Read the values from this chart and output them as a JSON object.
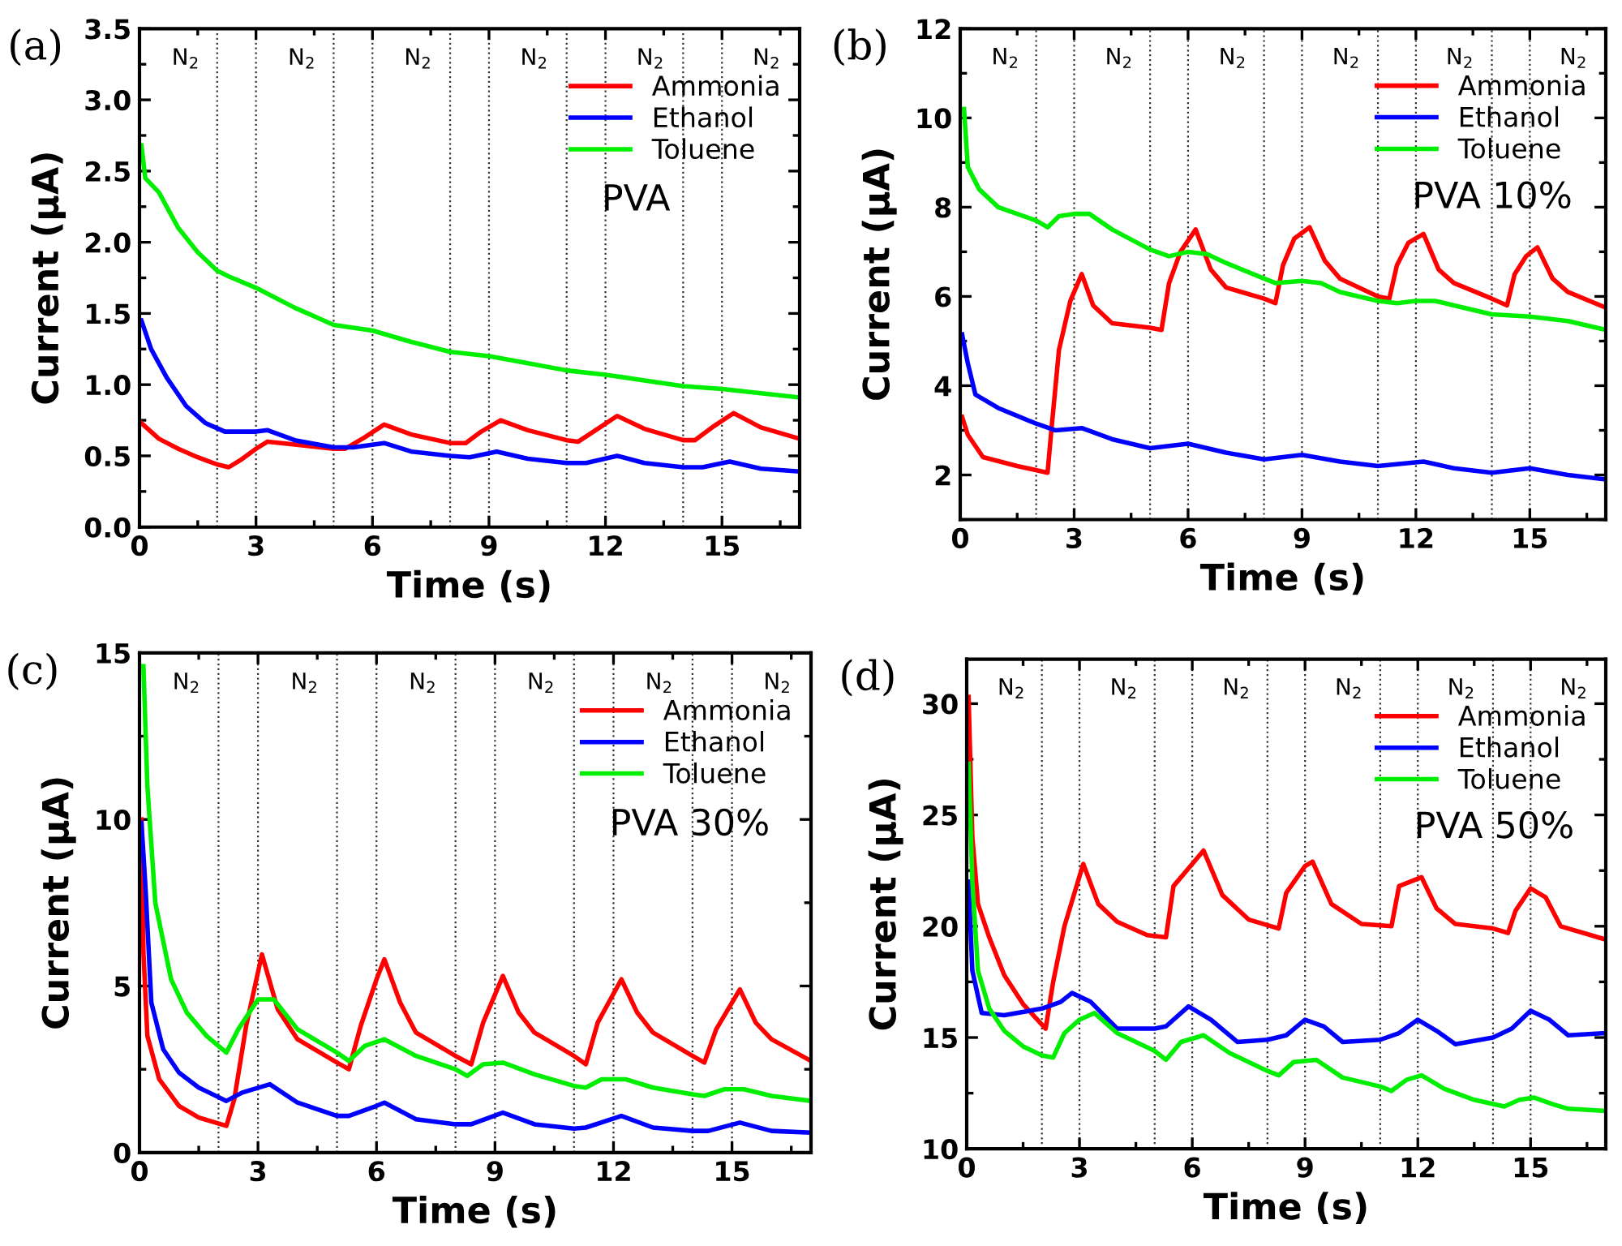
{
  "chart_data": [
    {
      "type": "line",
      "title": "(a)",
      "xlabel": "Time (s)",
      "ylabel": "Current (μA)",
      "xlim": [
        0,
        17
      ],
      "xticks": [
        0,
        3,
        6,
        9,
        12,
        15
      ],
      "ylim": [
        0,
        3.5
      ],
      "yticks": [
        {
          "value": 0,
          "label": "0.0"
        },
        {
          "value": 0.5,
          "label": "0.5"
        },
        {
          "value": 1,
          "label": "1.0"
        },
        {
          "value": 1.5,
          "label": "1.5"
        },
        {
          "value": 2,
          "label": "2.0"
        },
        {
          "value": 2.5,
          "label": "2.5"
        },
        {
          "value": 3,
          "label": "3.0"
        },
        {
          "value": 3.5,
          "label": "3.5"
        }
      ],
      "legend": "top right",
      "grid": false,
      "series": [
        {
          "name": "Ammonia",
          "color": "#ff0000",
          "x": [
            0.05,
            0.5,
            1,
            1.5,
            2,
            2.3,
            2.6,
            3,
            3.3,
            4,
            5,
            5.3,
            5.8,
            6.3,
            7,
            8,
            8.4,
            8.8,
            9.3,
            10,
            11,
            11.3,
            11.8,
            12.3,
            13,
            14,
            14.3,
            14.8,
            15.3,
            16,
            17
          ],
          "values": [
            0.73,
            0.62,
            0.55,
            0.49,
            0.44,
            0.42,
            0.47,
            0.55,
            0.6,
            0.58,
            0.55,
            0.55,
            0.63,
            0.72,
            0.65,
            0.59,
            0.59,
            0.67,
            0.75,
            0.68,
            0.61,
            0.6,
            0.69,
            0.78,
            0.69,
            0.61,
            0.61,
            0.71,
            0.8,
            0.7,
            0.62
          ]
        },
        {
          "name": "Ethanol",
          "color": "#0000ff",
          "x": [
            0.05,
            0.3,
            0.7,
            1.2,
            1.7,
            2.2,
            3,
            3.3,
            4,
            5,
            5.5,
            6.3,
            7,
            8,
            8.5,
            9.2,
            10,
            11,
            11.5,
            12.3,
            13,
            14,
            14.5,
            15.2,
            16,
            17
          ],
          "values": [
            1.45,
            1.25,
            1.05,
            0.85,
            0.73,
            0.67,
            0.67,
            0.68,
            0.61,
            0.56,
            0.56,
            0.59,
            0.53,
            0.5,
            0.49,
            0.53,
            0.48,
            0.45,
            0.45,
            0.5,
            0.45,
            0.42,
            0.42,
            0.46,
            0.41,
            0.39
          ]
        },
        {
          "name": "Toluene",
          "color": "#00ee00",
          "x": [
            0.05,
            0.15,
            0.5,
            1,
            1.5,
            2,
            2.3,
            3,
            4,
            5,
            6,
            7,
            8,
            9,
            10,
            11,
            12,
            13,
            14,
            15,
            16,
            17
          ],
          "values": [
            2.68,
            2.45,
            2.35,
            2.1,
            1.93,
            1.8,
            1.76,
            1.68,
            1.54,
            1.42,
            1.38,
            1.3,
            1.23,
            1.2,
            1.15,
            1.1,
            1.07,
            1.03,
            0.99,
            0.97,
            0.94,
            0.91
          ]
        }
      ],
      "ref_lines": [
        {
          "axis": "x",
          "value": 2,
          "line_style": "dotted"
        },
        {
          "axis": "x",
          "value": 3,
          "line_style": "dotted"
        },
        {
          "axis": "x",
          "value": 5,
          "line_style": "dotted"
        },
        {
          "axis": "x",
          "value": 6,
          "line_style": "dotted"
        },
        {
          "axis": "x",
          "value": 8,
          "line_style": "dotted"
        },
        {
          "axis": "x",
          "value": 9,
          "line_style": "dotted"
        },
        {
          "axis": "x",
          "value": 11,
          "line_style": "dotted"
        },
        {
          "axis": "x",
          "value": 12,
          "line_style": "dotted"
        },
        {
          "axis": "x",
          "value": 14,
          "line_style": "dotted"
        },
        {
          "axis": "x",
          "value": 15,
          "line_style": "dotted"
        }
      ],
      "annotations": [
        "N$_{2}$",
        "N$_{2}$",
        "N$_{2}$",
        "N$_{2}$",
        "N$_{2}$",
        "N$_{2}$",
        "PVA"
      ]
    },
    {
      "type": "line",
      "title": "(b)",
      "xlabel": "Time (s)",
      "ylabel": "Current (μA)",
      "xlim": [
        0,
        17
      ],
      "xticks": [
        0,
        3,
        6,
        9,
        12,
        15
      ],
      "ylim": [
        1,
        12
      ],
      "yticks": [
        2,
        4,
        6,
        8,
        10,
        12
      ],
      "legend": "top right",
      "grid": false,
      "series": [
        {
          "name": "Ammonia",
          "color": "#ff0000",
          "x": [
            0.05,
            0.2,
            0.6,
            1.5,
            2.3,
            2.4,
            2.6,
            2.9,
            3.2,
            3.5,
            4,
            5,
            5.3,
            5.5,
            5.8,
            6.2,
            6.6,
            7,
            8,
            8.3,
            8.5,
            8.8,
            9.2,
            9.6,
            10,
            11,
            11.3,
            11.5,
            11.8,
            12.2,
            12.6,
            13,
            14,
            14.4,
            14.6,
            14.9,
            15.2,
            15.6,
            16,
            17
          ],
          "values": [
            3.3,
            2.9,
            2.4,
            2.2,
            2.05,
            3.0,
            4.8,
            5.9,
            6.5,
            5.8,
            5.4,
            5.3,
            5.25,
            6.3,
            7.0,
            7.5,
            6.6,
            6.2,
            5.95,
            5.85,
            6.7,
            7.3,
            7.55,
            6.8,
            6.4,
            6.0,
            5.95,
            6.7,
            7.2,
            7.4,
            6.6,
            6.3,
            5.95,
            5.8,
            6.5,
            6.9,
            7.1,
            6.4,
            6.1,
            5.75
          ]
        },
        {
          "name": "Ethanol",
          "color": "#0000ff",
          "x": [
            0.05,
            0.2,
            0.4,
            1,
            2,
            2.5,
            3.2,
            4,
            5,
            6,
            7,
            8,
            9,
            10,
            11,
            12.2,
            13,
            14,
            15,
            16,
            17
          ],
          "values": [
            5.15,
            4.5,
            3.8,
            3.5,
            3.15,
            3.0,
            3.05,
            2.8,
            2.6,
            2.7,
            2.5,
            2.35,
            2.45,
            2.3,
            2.2,
            2.3,
            2.15,
            2.05,
            2.15,
            2.0,
            1.9
          ]
        },
        {
          "name": "Toluene",
          "color": "#00ee00",
          "x": [
            0.1,
            0.2,
            0.5,
            1,
            2,
            2.3,
            2.6,
            3,
            3.4,
            4,
            5,
            5.5,
            6,
            6.5,
            7,
            8,
            8.3,
            9,
            9.5,
            10,
            11,
            11.5,
            12,
            12.5,
            13,
            14,
            15,
            16,
            17
          ],
          "values": [
            10.2,
            8.9,
            8.4,
            8.0,
            7.7,
            7.55,
            7.8,
            7.85,
            7.85,
            7.5,
            7.05,
            6.9,
            7.0,
            6.95,
            6.75,
            6.4,
            6.3,
            6.35,
            6.3,
            6.1,
            5.9,
            5.85,
            5.9,
            5.9,
            5.8,
            5.6,
            5.55,
            5.45,
            5.25
          ]
        }
      ],
      "ref_lines": [
        {
          "axis": "x",
          "value": 2,
          "line_style": "dotted"
        },
        {
          "axis": "x",
          "value": 3,
          "line_style": "dotted"
        },
        {
          "axis": "x",
          "value": 5,
          "line_style": "dotted"
        },
        {
          "axis": "x",
          "value": 6,
          "line_style": "dotted"
        },
        {
          "axis": "x",
          "value": 8,
          "line_style": "dotted"
        },
        {
          "axis": "x",
          "value": 9,
          "line_style": "dotted"
        },
        {
          "axis": "x",
          "value": 11,
          "line_style": "dotted"
        },
        {
          "axis": "x",
          "value": 12,
          "line_style": "dotted"
        },
        {
          "axis": "x",
          "value": 14,
          "line_style": "dotted"
        },
        {
          "axis": "x",
          "value": 15,
          "line_style": "dotted"
        }
      ],
      "annotations": [
        "N$_{2}$",
        "N$_{2}$",
        "N$_{2}$",
        "N$_{2}$",
        "N$_{2}$",
        "N$_{2}$",
        "PVA 10%"
      ]
    },
    {
      "type": "line",
      "title": "(c)",
      "xlabel": "Time (s)",
      "ylabel": "Current (μA)",
      "xlim": [
        0,
        17
      ],
      "xticks": [
        0,
        3,
        6,
        9,
        12,
        15
      ],
      "ylim": [
        0,
        15
      ],
      "yticks": [
        0,
        5,
        10,
        15
      ],
      "legend": "top right",
      "grid": false,
      "series": [
        {
          "name": "Ammonia",
          "color": "#ff0000",
          "x": [
            0.05,
            0.1,
            0.2,
            0.5,
            1,
            1.5,
            2.2,
            2.4,
            2.7,
            3.1,
            3.5,
            4,
            5,
            5.3,
            5.6,
            6,
            6.2,
            6.6,
            7,
            8,
            8.4,
            8.7,
            9.2,
            9.6,
            10,
            11,
            11.3,
            11.6,
            12.2,
            12.6,
            13,
            14,
            14.3,
            14.6,
            15.2,
            15.6,
            16,
            17
          ],
          "values": [
            10,
            6,
            3.5,
            2.2,
            1.4,
            1.05,
            0.8,
            1.6,
            3.8,
            5.95,
            4.3,
            3.4,
            2.7,
            2.5,
            3.8,
            5.2,
            5.8,
            4.5,
            3.6,
            2.9,
            2.65,
            3.9,
            5.3,
            4.2,
            3.6,
            2.9,
            2.65,
            3.9,
            5.2,
            4.2,
            3.6,
            2.9,
            2.7,
            3.7,
            4.9,
            3.9,
            3.4,
            2.75
          ]
        },
        {
          "name": "Ethanol",
          "color": "#0000ff",
          "x": [
            0.05,
            0.15,
            0.3,
            0.6,
            1,
            1.5,
            2.2,
            2.6,
            3.3,
            4,
            5,
            5.3,
            6,
            6.2,
            7,
            8,
            8.4,
            9.2,
            10,
            11,
            11.3,
            12.2,
            13,
            14,
            14.4,
            15.2,
            16,
            17
          ],
          "values": [
            9.9,
            8,
            4.5,
            3.1,
            2.4,
            1.95,
            1.55,
            1.8,
            2.05,
            1.5,
            1.1,
            1.1,
            1.4,
            1.5,
            1.0,
            0.85,
            0.85,
            1.2,
            0.85,
            0.72,
            0.75,
            1.1,
            0.75,
            0.65,
            0.65,
            0.9,
            0.65,
            0.6
          ]
        },
        {
          "name": "Toluene",
          "color": "#00ee00",
          "x": [
            0.1,
            0.2,
            0.4,
            0.8,
            1.2,
            1.7,
            2.2,
            2.5,
            3,
            3.4,
            4,
            5,
            5.3,
            5.7,
            6.2,
            7,
            8,
            8.3,
            8.7,
            9.2,
            10,
            11,
            11.3,
            11.7,
            12.3,
            13,
            14,
            14.3,
            14.8,
            15.3,
            16,
            17
          ],
          "values": [
            14.6,
            11,
            7.5,
            5.2,
            4.2,
            3.5,
            3.0,
            3.7,
            4.6,
            4.6,
            3.7,
            3.0,
            2.75,
            3.2,
            3.4,
            2.9,
            2.5,
            2.3,
            2.65,
            2.7,
            2.35,
            2.0,
            1.95,
            2.2,
            2.2,
            1.95,
            1.75,
            1.7,
            1.9,
            1.9,
            1.7,
            1.55
          ]
        }
      ],
      "ref_lines": [
        {
          "axis": "x",
          "value": 2,
          "line_style": "dotted"
        },
        {
          "axis": "x",
          "value": 3,
          "line_style": "dotted"
        },
        {
          "axis": "x",
          "value": 5,
          "line_style": "dotted"
        },
        {
          "axis": "x",
          "value": 6,
          "line_style": "dotted"
        },
        {
          "axis": "x",
          "value": 8,
          "line_style": "dotted"
        },
        {
          "axis": "x",
          "value": 9,
          "line_style": "dotted"
        },
        {
          "axis": "x",
          "value": 11,
          "line_style": "dotted"
        },
        {
          "axis": "x",
          "value": 12,
          "line_style": "dotted"
        },
        {
          "axis": "x",
          "value": 14,
          "line_style": "dotted"
        },
        {
          "axis": "x",
          "value": 15,
          "line_style": "dotted"
        }
      ],
      "annotations": [
        "N$_{2}$",
        "N$_{2}$",
        "N$_{2}$",
        "N$_{2}$",
        "N$_{2}$",
        "N$_{2}$",
        "PVA 30%"
      ]
    },
    {
      "type": "line",
      "title": "(d)",
      "xlabel": "Time (s)",
      "ylabel": "Current (μA)",
      "xlim": [
        0,
        17
      ],
      "xticks": [
        0,
        3,
        6,
        9,
        12,
        15
      ],
      "ylim": [
        10,
        32
      ],
      "yticks": [
        10,
        15,
        20,
        25,
        30
      ],
      "legend": "top right",
      "grid": false,
      "series": [
        {
          "name": "Ammonia",
          "color": "#ff0000",
          "x": [
            0.05,
            0.15,
            0.3,
            0.6,
            1,
            1.5,
            2.1,
            2.3,
            2.6,
            3.1,
            3.5,
            4,
            4.8,
            5.3,
            5.5,
            6,
            6.3,
            6.8,
            7.5,
            8.3,
            8.5,
            9,
            9.2,
            9.7,
            10.5,
            11.3,
            11.5,
            12.1,
            12.5,
            13,
            14,
            14.4,
            14.6,
            15,
            15.4,
            15.8,
            17
          ],
          "values": [
            30.3,
            24,
            21,
            19.5,
            17.8,
            16.5,
            15.4,
            17.5,
            20,
            22.8,
            21,
            20.2,
            19.6,
            19.5,
            21.8,
            22.8,
            23.4,
            21.4,
            20.3,
            19.9,
            21.5,
            22.7,
            22.9,
            21,
            20.1,
            20,
            21.8,
            22.2,
            20.8,
            20.1,
            19.9,
            19.7,
            20.7,
            21.7,
            21.3,
            20,
            19.4
          ]
        },
        {
          "name": "Ethanol",
          "color": "#0000ff",
          "x": [
            0.05,
            0.15,
            0.4,
            1,
            2,
            2.5,
            2.8,
            3.3,
            4,
            5,
            5.3,
            5.9,
            6.5,
            7.2,
            8,
            8.5,
            9,
            9.5,
            10,
            11,
            11.5,
            12,
            12.5,
            13,
            14,
            14.5,
            15,
            15.5,
            16,
            17
          ],
          "values": [
            22,
            18,
            16.1,
            16,
            16.3,
            16.6,
            17.0,
            16.6,
            15.4,
            15.4,
            15.5,
            16.4,
            15.8,
            14.8,
            14.9,
            15.1,
            15.8,
            15.5,
            14.8,
            14.9,
            15.2,
            15.8,
            15.3,
            14.7,
            15.0,
            15.4,
            16.2,
            15.8,
            15.1,
            15.2
          ]
        },
        {
          "name": "Toluene",
          "color": "#00ee00",
          "x": [
            0.05,
            0.15,
            0.3,
            0.6,
            1,
            1.5,
            2,
            2.3,
            2.6,
            3,
            3.4,
            4,
            5,
            5.3,
            5.7,
            6.3,
            7,
            8,
            8.3,
            8.7,
            9.3,
            10,
            11,
            11.3,
            11.7,
            12.1,
            12.7,
            13.5,
            14.3,
            14.7,
            15.1,
            15.6,
            16,
            17
          ],
          "values": [
            27.3,
            22,
            18,
            16.3,
            15.3,
            14.6,
            14.2,
            14.1,
            15.2,
            15.8,
            16.1,
            15.2,
            14.4,
            14.0,
            14.8,
            15.1,
            14.3,
            13.5,
            13.3,
            13.9,
            14.0,
            13.2,
            12.8,
            12.6,
            13.1,
            13.3,
            12.7,
            12.2,
            11.9,
            12.2,
            12.3,
            12.0,
            11.8,
            11.7
          ]
        }
      ],
      "ref_lines": [
        {
          "axis": "x",
          "value": 2,
          "line_style": "dotted"
        },
        {
          "axis": "x",
          "value": 3,
          "line_style": "dotted"
        },
        {
          "axis": "x",
          "value": 5,
          "line_style": "dotted"
        },
        {
          "axis": "x",
          "value": 6,
          "line_style": "dotted"
        },
        {
          "axis": "x",
          "value": 8,
          "line_style": "dotted"
        },
        {
          "axis": "x",
          "value": 9,
          "line_style": "dotted"
        },
        {
          "axis": "x",
          "value": 11,
          "line_style": "dotted"
        },
        {
          "axis": "x",
          "value": 12,
          "line_style": "dotted"
        },
        {
          "axis": "x",
          "value": 14,
          "line_style": "dotted"
        },
        {
          "axis": "x",
          "value": 15,
          "line_style": "dotted"
        }
      ],
      "annotations": [
        "N$_{2}$",
        "N$_{2}$",
        "N$_{2}$",
        "N$_{2}$",
        "N$_{2}$",
        "N$_{2}$",
        "PVA 50%"
      ]
    }
  ]
}
